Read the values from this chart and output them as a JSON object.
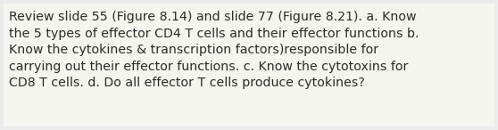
{
  "text": "Review slide 55 (Figure 8.14) and slide 77 (Figure 8.21). a. Know\nthe 5 types of effector CD4 T cells and their effector functions b.\nKnow the cytokines & transcription factors)responsible for\ncarrying out their effector functions. c. Know the cytotoxins for\nCD8 T cells. d. Do all effector T cells produce cytokines?",
  "background_color": "#ebebeb",
  "box_color": "#f5f5f0",
  "text_color": "#2b2b2b",
  "font_size": 10.2,
  "font_family": "DejaVu Sans",
  "fig_width": 5.58,
  "fig_height": 1.46,
  "dpi": 100
}
